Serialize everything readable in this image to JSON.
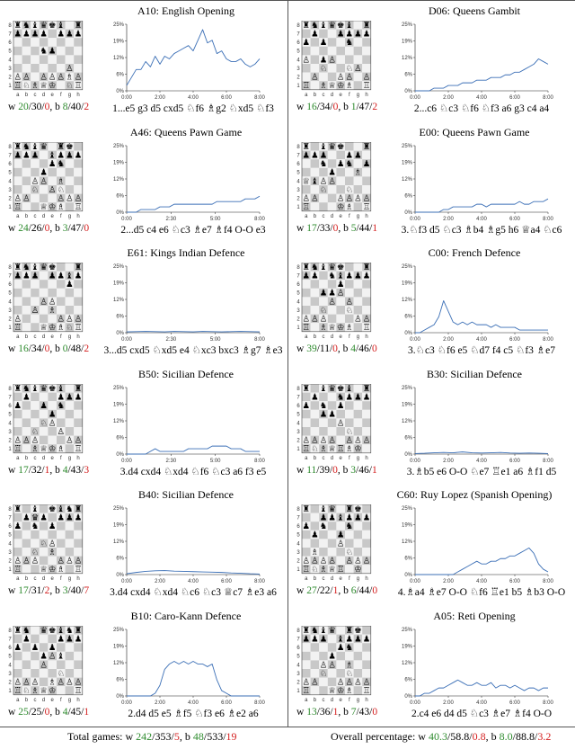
{
  "summary": {
    "total_label": "Total games:",
    "total_w_label": "w",
    "total_w": [
      "242",
      "353",
      "5"
    ],
    "total_b_label": "b",
    "total_b": [
      "48",
      "533",
      "19"
    ],
    "pct_label": "Overall percentage:",
    "pct_w_label": "w",
    "pct_w": [
      "40.3",
      "58.8",
      "0.8"
    ],
    "pct_b_label": "b",
    "pct_b": [
      "8.0",
      "88.8",
      "3.2"
    ]
  },
  "colors": {
    "win": "#2e8b2e",
    "loss": "#d42020",
    "line": "#3b6fb6"
  },
  "openings": [
    {
      "eco": "A10",
      "name": "English Opening",
      "moves": "1...e5 g3 d5 cxd5 ♘f6 ♗g2 ♘xd5 ♘f3",
      "white": [
        "20",
        "30",
        "0"
      ],
      "black": [
        "8",
        "40",
        "2"
      ],
      "board": [
        "rnbqkb.r",
        "pppp.ppp",
        "........",
        "...np...",
        "........",
        "......P.",
        "PP.PPPBP",
        "RNBQK.NR"
      ]
    },
    {
      "eco": "D06",
      "name": "Queens Gambit",
      "moves": "2...c6 ♘c3 ♘f6 ♘f3 a6 g3 c4 a4",
      "white": [
        "16",
        "34",
        "0"
      ],
      "black": [
        "1",
        "47",
        "2"
      ],
      "board": [
        "rnbqkb.r",
        ".p..pppp",
        "p.p..n..",
        "........",
        "P.pP....",
        "..N..NP.",
        ".P..PP.P",
        "R.BQKB.R"
      ]
    },
    {
      "eco": "A46",
      "name": "Queens Pawn Game",
      "moves": "2...d5 c4 e6 ♘c3 ♗e7 ♗f4 O-O e3",
      "white": [
        "24",
        "26",
        "0"
      ],
      "black": [
        "3",
        "47",
        "0"
      ],
      "board": [
        "rnbq.rk.",
        "ppp.bppp",
        "....pn..",
        "...p....",
        "..PP.B..",
        "..N.PN..",
        "PP...PPP",
        "R..QKB.R"
      ]
    },
    {
      "eco": "E00",
      "name": "Queens Pawn Game",
      "moves": "3.♘f3 d5 ♘c3 ♗b4 ♗g5 h6 ♕a4 ♘c6",
      "white": [
        "17",
        "33",
        "0"
      ],
      "black": [
        "5",
        "44",
        "1"
      ],
      "board": [
        "r.bqk..r",
        "ppp..pp.",
        "..n.pn.p",
        "...p..B.",
        "QbPP....",
        "..N..N..",
        "PP..PPPP",
        "R...KB.R"
      ]
    },
    {
      "eco": "E61",
      "name": "Kings Indian Defence",
      "moves": "3...d5 cxd5 ♘xd5 e4 ♘xc3 bxc3 ♗g7 ♗e3",
      "white": [
        "16",
        "34",
        "0"
      ],
      "black": [
        "0",
        "48",
        "2"
      ],
      "board": [
        "rnbqk..r",
        "ppp.ppbp",
        "......p.",
        "........",
        "...PP...",
        "..P.B...",
        "P....PPP",
        "R..QKBNR"
      ]
    },
    {
      "eco": "C00",
      "name": "French Defence",
      "moves": "3.♘c3 ♘f6 e5 ♘d7 f4 c5 ♘f3 ♗e7",
      "white": [
        "39",
        "11",
        "0"
      ],
      "black": [
        "4",
        "46",
        "0"
      ],
      "board": [
        "rnbqk..r",
        "pp.nbppp",
        "....p...",
        "..ppP...",
        "...P.P..",
        "..N..N..",
        "PPP...PP",
        "R.BQKB.R"
      ]
    },
    {
      "eco": "B50",
      "name": "Sicilian Defence",
      "moves": "3.d4 cxd4 ♘xd4 ♘f6 ♘c3 a6 f3 e5",
      "white": [
        "17",
        "32",
        "1"
      ],
      "black": [
        "4",
        "43",
        "3"
      ],
      "board": [
        "rnbqkb.r",
        ".p...ppp",
        "p..p.n..",
        "....p...",
        "...NP...",
        "..N..P..",
        "PPP...PP",
        "R.BQKB.R"
      ]
    },
    {
      "eco": "B30",
      "name": "Sicilian Defence",
      "moves": "3.♗b5 e6 O-O ♘e7 ♖e1 a6 ♗f1 d5",
      "white": [
        "11",
        "39",
        "0"
      ],
      "black": [
        "3",
        "46",
        "1"
      ],
      "board": [
        "r.bqkb.r",
        ".p..nppp",
        "p.n.p...",
        "..pp....",
        "....P...",
        ".....N..",
        "PPPP.PPP",
        "RNBQRBK."
      ]
    },
    {
      "eco": "B40",
      "name": "Sicilian Defence",
      "moves": "3.d4 cxd4 ♘xd4 ♘c6 ♘c3 ♕c7 ♗e3 a6",
      "white": [
        "17",
        "31",
        "2"
      ],
      "black": [
        "3",
        "40",
        "7"
      ],
      "board": [
        "r.b.kbnr",
        ".pqp.ppp",
        "p.n.p...",
        "........",
        "...NP...",
        "..N.B...",
        "PPP..PPP",
        "R..QKB.R"
      ]
    },
    {
      "eco": "C60",
      "name": "Ruy Lopez (Spanish Opening)",
      "moves": "4.♗a4 ♗e7 O-O ♘f6 ♖e1 b5 ♗b3 O-O",
      "white": [
        "27",
        "22",
        "1"
      ],
      "black": [
        "6",
        "44",
        "0"
      ],
      "board": [
        "r.bq.rk.",
        "..ppbppp",
        "p.n..n..",
        ".p..p...",
        "....P...",
        ".B...N..",
        "PPPP.PPP",
        "RNBQR.K."
      ]
    },
    {
      "eco": "B10",
      "name": "Caro-Kann Defence",
      "moves": "2.d4 d5 e5 ♗f5 ♘f3 e6 ♗e2 a6",
      "white": [
        "25",
        "25",
        "0"
      ],
      "black": [
        "4",
        "45",
        "1"
      ],
      "board": [
        "rn.qkbnr",
        ".p...ppp",
        "p.p.p...",
        "...pPb..",
        "...P....",
        ".....N..",
        "PPP.BPPP",
        "RNBQK..R"
      ]
    },
    {
      "eco": "A05",
      "name": "Reti Opening",
      "moves": "2.c4 e6 d4 d5 ♘c3 ♗e7 ♗f4 O-O",
      "white": [
        "13",
        "36",
        "1"
      ],
      "black": [
        "7",
        "43",
        "0"
      ],
      "board": [
        "rnbq.rk.",
        "ppp.bppp",
        "....pn..",
        "...p....",
        "..PP.B..",
        "..N..N..",
        "PP..PPPP",
        "R..QKB.R"
      ]
    }
  ],
  "chart_data": [
    {
      "type": "line",
      "eco": "A10",
      "xlabel": "",
      "ylabel": "",
      "xlim": [
        0,
        560
      ],
      "ylim": [
        0,
        25
      ],
      "xticks": [
        "0:00",
        "2:00",
        "4:00",
        "6:00",
        "8:00"
      ],
      "yticks": [
        "0%",
        "6%",
        "12%",
        "19%",
        "25%"
      ],
      "x": [
        0,
        20,
        40,
        60,
        80,
        100,
        120,
        140,
        160,
        180,
        200,
        220,
        240,
        260,
        280,
        300,
        320,
        340,
        360,
        380,
        400,
        420,
        440,
        460,
        480,
        500,
        520,
        540,
        560
      ],
      "values": [
        2,
        5,
        8,
        8,
        11,
        9,
        13,
        10,
        13,
        12,
        14,
        15,
        16,
        17,
        15,
        19,
        23,
        18,
        19,
        14,
        15,
        12,
        11,
        11,
        12,
        10,
        9,
        10,
        12
      ]
    },
    {
      "type": "line",
      "eco": "D06",
      "xlabel": "",
      "ylabel": "",
      "xlim": [
        0,
        560
      ],
      "ylim": [
        0,
        25
      ],
      "xticks": [
        "0:00",
        "2:00",
        "4:00",
        "6:00",
        "8:00"
      ],
      "yticks": [
        "0%",
        "6%",
        "12%",
        "19%",
        "25%"
      ],
      "x": [
        0,
        20,
        40,
        60,
        80,
        100,
        120,
        140,
        160,
        180,
        200,
        220,
        240,
        260,
        280,
        300,
        320,
        340,
        360,
        380,
        400,
        420,
        440,
        460,
        480,
        500,
        520,
        540,
        560
      ],
      "values": [
        0,
        0,
        0,
        0,
        1,
        1,
        1,
        2,
        2,
        2,
        3,
        3,
        3,
        4,
        4,
        4,
        5,
        5,
        5,
        6,
        6,
        7,
        7,
        8,
        9,
        10,
        12,
        11,
        10
      ]
    },
    {
      "type": "line",
      "eco": "A46",
      "xlabel": "",
      "ylabel": "",
      "xlim": [
        0,
        560
      ],
      "ylim": [
        0,
        25
      ],
      "xticks": [
        "0:00",
        "2:30",
        "5:00",
        "8:00"
      ],
      "yticks": [
        "0%",
        "6%",
        "12%",
        "19%",
        "25%"
      ],
      "x": [
        0,
        20,
        40,
        60,
        80,
        100,
        120,
        140,
        160,
        180,
        200,
        220,
        240,
        260,
        280,
        300,
        320,
        340,
        360,
        380,
        400,
        420,
        440,
        460,
        480,
        500,
        520,
        540,
        560
      ],
      "values": [
        0,
        0,
        0,
        1,
        1,
        1,
        1,
        2,
        2,
        2,
        3,
        3,
        3,
        3,
        3,
        3,
        3,
        3,
        3,
        4,
        4,
        4,
        4,
        4,
        4,
        5,
        5,
        5,
        6
      ]
    },
    {
      "type": "line",
      "eco": "E00",
      "xlabel": "",
      "ylabel": "",
      "xlim": [
        0,
        560
      ],
      "ylim": [
        0,
        25
      ],
      "xticks": [
        "0:00",
        "2:00",
        "4:00",
        "6:00",
        "8:00"
      ],
      "yticks": [
        "0%",
        "6%",
        "12%",
        "19%",
        "25%"
      ],
      "x": [
        0,
        20,
        40,
        60,
        80,
        100,
        120,
        140,
        160,
        180,
        200,
        220,
        240,
        260,
        280,
        300,
        320,
        340,
        360,
        380,
        400,
        420,
        440,
        460,
        480,
        500,
        520,
        540,
        560
      ],
      "values": [
        0,
        0,
        0,
        0,
        0,
        0,
        1,
        1,
        2,
        2,
        2,
        2,
        2,
        3,
        3,
        2,
        3,
        3,
        3,
        3,
        3,
        3,
        4,
        3,
        3,
        4,
        4,
        4,
        5
      ]
    },
    {
      "type": "line",
      "eco": "E61",
      "xlabel": "",
      "ylabel": "",
      "xlim": [
        0,
        560
      ],
      "ylim": [
        0,
        25
      ],
      "xticks": [
        "0:00",
        "2:30",
        "5:00",
        "8:00"
      ],
      "yticks": [
        "0%",
        "6%",
        "12%",
        "19%",
        "25%"
      ],
      "x": [
        0,
        40,
        80,
        120,
        160,
        200,
        240,
        280,
        320,
        360,
        400,
        440,
        480,
        520,
        560
      ],
      "values": [
        0.3,
        0.4,
        0.5,
        0.4,
        0.3,
        0.5,
        0.4,
        0.3,
        0.5,
        0.4,
        0.3,
        0.4,
        0.5,
        0.4,
        0.3
      ]
    },
    {
      "type": "line",
      "eco": "C00",
      "xlabel": "",
      "ylabel": "",
      "xlim": [
        0,
        560
      ],
      "ylim": [
        0,
        25
      ],
      "xticks": [
        "0:00",
        "2:00",
        "4:00",
        "6:00",
        "8:00"
      ],
      "yticks": [
        "0%",
        "6%",
        "12%",
        "19%",
        "25%"
      ],
      "x": [
        0,
        20,
        40,
        60,
        80,
        100,
        120,
        140,
        160,
        180,
        200,
        220,
        240,
        260,
        280,
        300,
        320,
        340,
        360,
        380,
        400,
        420,
        440,
        460,
        480,
        500,
        520,
        540,
        560
      ],
      "values": [
        0,
        0,
        1,
        2,
        3,
        6,
        12,
        8,
        4,
        3,
        4,
        3,
        4,
        3,
        3,
        3,
        2,
        3,
        2,
        2,
        2,
        2,
        1,
        1,
        1,
        1,
        1,
        1,
        1
      ]
    },
    {
      "type": "line",
      "eco": "B50",
      "xlabel": "",
      "ylabel": "",
      "xlim": [
        0,
        560
      ],
      "ylim": [
        0,
        25
      ],
      "xticks": [
        "0:00",
        "2:30",
        "5:00",
        "8:00"
      ],
      "yticks": [
        "0%",
        "6%",
        "12%",
        "19%",
        "25%"
      ],
      "x": [
        0,
        20,
        40,
        60,
        80,
        100,
        120,
        140,
        160,
        180,
        200,
        220,
        240,
        260,
        280,
        300,
        320,
        340,
        360,
        380,
        400,
        420,
        440,
        460,
        480,
        500,
        520,
        540,
        560
      ],
      "values": [
        0,
        0,
        0,
        0,
        0,
        1,
        2,
        1,
        1,
        1,
        1,
        1,
        1,
        2,
        2,
        2,
        2,
        2,
        3,
        3,
        3,
        3,
        2,
        2,
        2,
        1,
        1,
        1,
        1
      ]
    },
    {
      "type": "line",
      "eco": "B30",
      "xlabel": "",
      "ylabel": "",
      "xlim": [
        0,
        560
      ],
      "ylim": [
        0,
        25
      ],
      "xticks": [
        "0:00",
        "2:00",
        "4:00",
        "6:00",
        "8:00"
      ],
      "yticks": [
        "0%",
        "6%",
        "12%",
        "19%",
        "25%"
      ],
      "x": [
        0,
        40,
        80,
        120,
        160,
        200,
        240,
        280,
        320,
        360,
        400,
        440,
        480,
        520,
        560
      ],
      "values": [
        0.2,
        0.3,
        0.5,
        0.6,
        0.5,
        0.8,
        0.5,
        0.4,
        0.5,
        0.6,
        0.4,
        0.3,
        0.4,
        0.3,
        0.2
      ]
    },
    {
      "type": "line",
      "eco": "B40",
      "xlabel": "",
      "ylabel": "",
      "xlim": [
        0,
        560
      ],
      "ylim": [
        0,
        25
      ],
      "xticks": [
        "0:00",
        "2:00",
        "4:00",
        "6:00",
        "8:00"
      ],
      "yticks": [
        "0%",
        "6%",
        "12%",
        "19%",
        "25%"
      ],
      "x": [
        0,
        40,
        80,
        120,
        160,
        200,
        240,
        280,
        320,
        360,
        400,
        440,
        480,
        520,
        560
      ],
      "values": [
        0.3,
        0.8,
        1.2,
        1.4,
        1.5,
        1.3,
        1.2,
        1.1,
        1.0,
        0.9,
        0.8,
        0.6,
        0.5,
        0.3,
        0.2
      ]
    },
    {
      "type": "line",
      "eco": "C60",
      "xlabel": "",
      "ylabel": "",
      "xlim": [
        0,
        560
      ],
      "ylim": [
        0,
        25
      ],
      "xticks": [
        "0:00",
        "2:00",
        "4:00",
        "6:00",
        "8:00"
      ],
      "yticks": [
        "0%",
        "6%",
        "12%",
        "19%",
        "25%"
      ],
      "x": [
        0,
        20,
        40,
        60,
        80,
        100,
        120,
        140,
        160,
        180,
        200,
        220,
        240,
        260,
        280,
        300,
        320,
        340,
        360,
        380,
        400,
        420,
        440,
        460,
        480,
        500,
        520,
        540,
        560
      ],
      "values": [
        0,
        0,
        0,
        0,
        0,
        0,
        0,
        0,
        0,
        1,
        2,
        3,
        4,
        5,
        4,
        4,
        5,
        5,
        6,
        6,
        7,
        7,
        8,
        9,
        10,
        8,
        4,
        2,
        1
      ]
    },
    {
      "type": "line",
      "eco": "B10",
      "xlabel": "",
      "ylabel": "",
      "xlim": [
        0,
        560
      ],
      "ylim": [
        0,
        25
      ],
      "xticks": [
        "0:00",
        "2:00",
        "4:00",
        "6:00",
        "8:00"
      ],
      "yticks": [
        "0%",
        "6%",
        "12%",
        "19%",
        "25%"
      ],
      "x": [
        0,
        20,
        40,
        60,
        80,
        100,
        120,
        140,
        160,
        180,
        200,
        220,
        240,
        260,
        280,
        300,
        320,
        340,
        360,
        380,
        400,
        420,
        440,
        460,
        480,
        500,
        520,
        540,
        560
      ],
      "values": [
        0,
        0,
        0,
        0,
        0,
        0,
        1,
        4,
        10,
        12,
        13,
        12,
        13,
        12,
        13,
        12,
        12,
        11,
        12,
        6,
        2,
        1,
        0,
        0,
        0,
        0,
        0,
        0,
        0
      ]
    },
    {
      "type": "line",
      "eco": "A05",
      "xlabel": "",
      "ylabel": "",
      "xlim": [
        0,
        560
      ],
      "ylim": [
        0,
        25
      ],
      "xticks": [
        "0:00",
        "2:00",
        "4:00",
        "6:00",
        "8:00"
      ],
      "yticks": [
        "0%",
        "6%",
        "12%",
        "19%",
        "25%"
      ],
      "x": [
        0,
        20,
        40,
        60,
        80,
        100,
        120,
        140,
        160,
        180,
        200,
        220,
        240,
        260,
        280,
        300,
        320,
        340,
        360,
        380,
        400,
        420,
        440,
        460,
        480,
        500,
        520,
        540,
        560
      ],
      "values": [
        0,
        0,
        1,
        1,
        2,
        3,
        3,
        4,
        5,
        6,
        5,
        4,
        4,
        5,
        4,
        4,
        5,
        3,
        4,
        4,
        3,
        4,
        3,
        2,
        3,
        3,
        2,
        3,
        3
      ]
    }
  ]
}
